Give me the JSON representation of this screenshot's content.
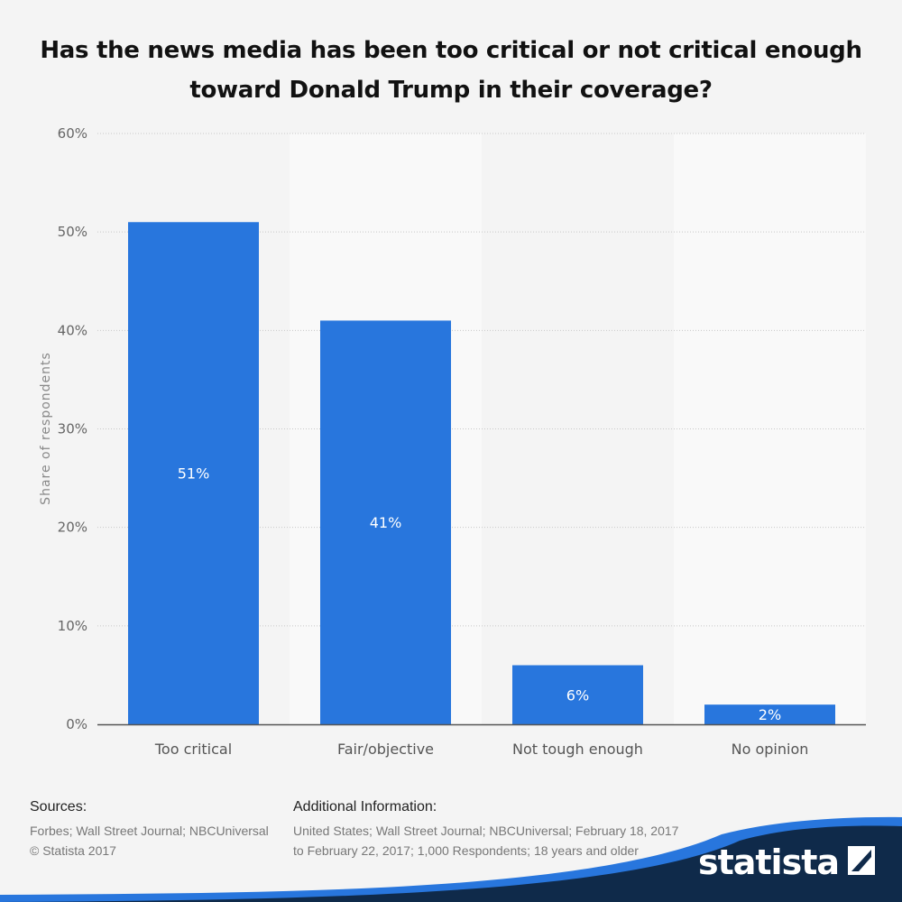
{
  "chart_data": {
    "type": "bar",
    "title": "Has the news media has been too critical or not critical enough toward Donald Trump in their coverage?",
    "categories": [
      "Too critical",
      "Fair/objective",
      "Not tough enough",
      "No opinion"
    ],
    "values": [
      51,
      41,
      6,
      2
    ],
    "data_labels": [
      "51%",
      "41%",
      "6%",
      "2%"
    ],
    "ylabel": "Share of respondents",
    "ylim": [
      0,
      60
    ],
    "yticks": [
      "0%",
      "10%",
      "20%",
      "30%",
      "40%",
      "50%",
      "60%"
    ],
    "grid": true,
    "bar_color": "#2876dd"
  },
  "footer": {
    "sources_heading": "Sources:",
    "sources_lines": [
      "Forbes; Wall Street Journal; NBCUniversal",
      "© Statista 2017"
    ],
    "additional_heading": "Additional Information:",
    "additional_lines": [
      "United States; Wall Street Journal; NBCUniversal; February 18, 2017",
      "to February 22, 2017; 1,000 Respondents; 18 years and older"
    ]
  },
  "brand": {
    "name": "statista",
    "color": "#0f2a4a",
    "accent": "#2876dd"
  }
}
